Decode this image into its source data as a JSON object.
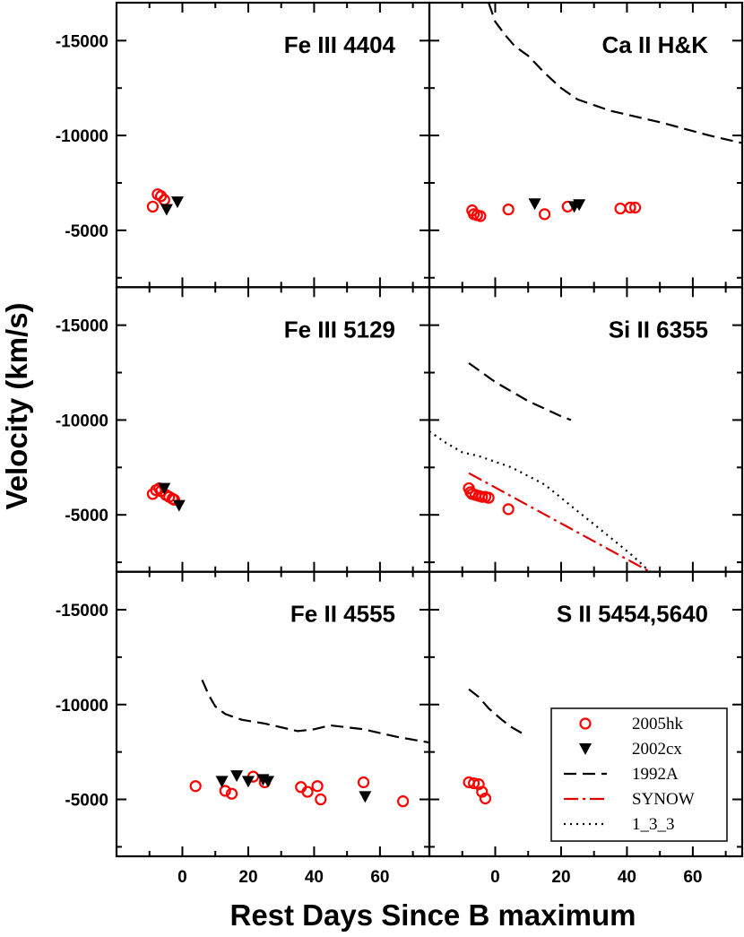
{
  "chart_data": {
    "type": "scatter",
    "xlabel": "Rest Days Since B maximum",
    "ylabel": "Velocity (km/s)",
    "xlim": [
      -20,
      75
    ],
    "ylim": [
      -17000,
      -2000
    ],
    "xticks": [
      0,
      20,
      40,
      60
    ],
    "xtick_labels": [
      "0",
      "20",
      "40",
      "60"
    ],
    "yticks": [
      -15000,
      -10000,
      -5000
    ],
    "ytick_labels": [
      "-15000",
      "-10000",
      "-5000"
    ],
    "legend": {
      "placement": "bottom-right of lower-right panel",
      "entries": [
        {
          "label": "2005hk",
          "style": "circle",
          "color": "#ff0000"
        },
        {
          "label": "2002cx",
          "style": "triangle",
          "color": "#000000"
        },
        {
          "label": "1992A",
          "style": "dashed",
          "color": "#000000"
        },
        {
          "label": "SYNOW",
          "style": "dashdot",
          "color": "#e00000"
        },
        {
          "label": "1_3_3",
          "style": "dotted",
          "color": "#000000"
        }
      ]
    },
    "panels": [
      {
        "title": "Fe III 4404",
        "series": [
          {
            "name": "2005hk",
            "points": [
              [
                -9,
                -6250
              ],
              [
                -7.5,
                -6900
              ],
              [
                -6.5,
                -6800
              ],
              [
                -5.5,
                -6600
              ]
            ]
          },
          {
            "name": "2002cx",
            "points": [
              [
                -4.8,
                -6100
              ],
              [
                -1.5,
                -6500
              ]
            ]
          }
        ]
      },
      {
        "title": "Ca II H&K",
        "series": [
          {
            "name": "2005hk",
            "points": [
              [
                -7,
                -6050
              ],
              [
                -6.5,
                -5850
              ],
              [
                -5.5,
                -5800
              ],
              [
                -4.5,
                -5750
              ],
              [
                4,
                -6100
              ],
              [
                15,
                -5850
              ],
              [
                22,
                -6250
              ],
              [
                38,
                -6150
              ],
              [
                41,
                -6200
              ],
              [
                42.5,
                -6200
              ]
            ]
          },
          {
            "name": "2002cx",
            "points": [
              [
                12,
                -6400
              ],
              [
                24,
                -6250
              ],
              [
                25.5,
                -6350
              ]
            ]
          },
          {
            "name": "1992A",
            "points": [
              [
                -2,
                -17000
              ],
              [
                0,
                -16000
              ],
              [
                3,
                -15300
              ],
              [
                6,
                -14700
              ],
              [
                10,
                -14200
              ],
              [
                15,
                -13300
              ],
              [
                20,
                -12500
              ],
              [
                25,
                -11900
              ],
              [
                35,
                -11300
              ],
              [
                50,
                -10700
              ],
              [
                65,
                -10000
              ],
              [
                75,
                -9600
              ]
            ]
          }
        ]
      },
      {
        "title": "Fe III 5129",
        "series": [
          {
            "name": "2005hk",
            "points": [
              [
                -9,
                -6100
              ],
              [
                -8,
                -6300
              ],
              [
                -7,
                -6400
              ],
              [
                -6.5,
                -6250
              ],
              [
                -5,
                -6050
              ],
              [
                -4,
                -5950
              ],
              [
                -3,
                -5850
              ],
              [
                -2.5,
                -5800
              ]
            ]
          },
          {
            "name": "2002cx",
            "points": [
              [
                -5.5,
                -6400
              ],
              [
                -1,
                -5500
              ]
            ]
          }
        ]
      },
      {
        "title": "Si II 6355",
        "series": [
          {
            "name": "2005hk",
            "points": [
              [
                -8,
                -6400
              ],
              [
                -7.5,
                -6200
              ],
              [
                -7,
                -6100
              ],
              [
                -6,
                -6050
              ],
              [
                -5,
                -6000
              ],
              [
                -4,
                -5950
              ],
              [
                -3,
                -5950
              ],
              [
                -2,
                -5900
              ],
              [
                4,
                -5300
              ]
            ]
          },
          {
            "name": "1992A",
            "points": [
              [
                -8,
                -13000
              ],
              [
                0,
                -12000
              ],
              [
                10,
                -11000
              ],
              [
                20,
                -10200
              ],
              [
                23,
                -10000
              ]
            ]
          },
          {
            "name": "SYNOW",
            "points": [
              [
                -8,
                -7200
              ],
              [
                47,
                -2000
              ]
            ]
          },
          {
            "name": "1_3_3",
            "points": [
              [
                -20,
                -9400
              ],
              [
                -15,
                -8800
              ],
              [
                -10,
                -8300
              ],
              [
                -5,
                -8100
              ],
              [
                0,
                -7800
              ],
              [
                5,
                -7500
              ],
              [
                15,
                -6600
              ],
              [
                25,
                -5200
              ],
              [
                35,
                -3800
              ],
              [
                42,
                -2800
              ],
              [
                47,
                -2000
              ]
            ]
          }
        ]
      },
      {
        "title": "Fe II 4555",
        "series": [
          {
            "name": "2005hk",
            "points": [
              [
                4,
                -5700
              ],
              [
                13,
                -5450
              ],
              [
                15,
                -5300
              ],
              [
                21.5,
                -6200
              ],
              [
                25,
                -5900
              ],
              [
                36,
                -5650
              ],
              [
                38,
                -5400
              ],
              [
                41,
                -5700
              ],
              [
                42,
                -5000
              ],
              [
                55,
                -5900
              ],
              [
                67,
                -4900
              ]
            ]
          },
          {
            "name": "2002cx",
            "points": [
              [
                12,
                -5950
              ],
              [
                16.5,
                -6250
              ],
              [
                20,
                -5950
              ],
              [
                24.5,
                -6050
              ],
              [
                26,
                -5950
              ],
              [
                55.5,
                -5150
              ]
            ]
          },
          {
            "name": "1992A",
            "points": [
              [
                6,
                -11300
              ],
              [
                8,
                -10500
              ],
              [
                10,
                -9900
              ],
              [
                13,
                -9500
              ],
              [
                18,
                -9200
              ],
              [
                25,
                -9000
              ],
              [
                35,
                -8600
              ],
              [
                40,
                -8700
              ],
              [
                45,
                -8900
              ],
              [
                55,
                -8700
              ],
              [
                65,
                -8300
              ],
              [
                75,
                -8000
              ]
            ]
          }
        ]
      },
      {
        "title": "S II 5454,5640",
        "series": [
          {
            "name": "2005hk",
            "points": [
              [
                -8,
                -5900
              ],
              [
                -6.5,
                -5850
              ],
              [
                -5,
                -5800
              ],
              [
                -4,
                -5400
              ],
              [
                -3,
                -5050
              ]
            ]
          },
          {
            "name": "1992A",
            "points": [
              [
                -8,
                -10800
              ],
              [
                -5,
                -10400
              ],
              [
                -2,
                -9800
              ],
              [
                2,
                -9200
              ],
              [
                5,
                -8800
              ],
              [
                8,
                -8500
              ]
            ]
          }
        ]
      }
    ]
  }
}
